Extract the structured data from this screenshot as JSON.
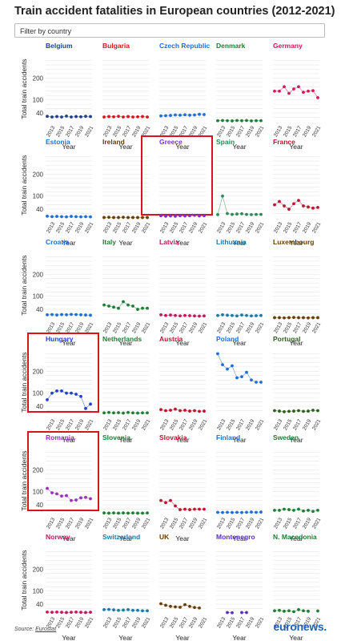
{
  "header": {
    "title": "Train accident fatalities in European countries (2012-2021)",
    "filter_placeholder": "Filter by country"
  },
  "footer": {
    "source_prefix": "Source:",
    "source_link": "Eurostat",
    "brand": "euronews."
  },
  "chart_data": {
    "type": "line",
    "layout": "small-multiples",
    "ylabel": "Total train accidents",
    "xlabel": "Year",
    "y_ticks": [
      40,
      100,
      200
    ],
    "x_ticks": [
      "2013",
      "2015",
      "2017",
      "2019",
      "2021"
    ],
    "x": [
      2012,
      2013,
      2014,
      2015,
      2016,
      2017,
      2018,
      2019,
      2020,
      2021
    ],
    "highlighted": [
      "Greece",
      "Hungary",
      "Romania"
    ],
    "panels": [
      {
        "name": "Belgium",
        "color": "#1f3f8f",
        "values": [
          25,
          22,
          24,
          22,
          26,
          22,
          24,
          23,
          25,
          24
        ]
      },
      {
        "name": "Bulgaria",
        "color": "#d6181e",
        "values": [
          22,
          24,
          23,
          25,
          22,
          24,
          22,
          23,
          24,
          22
        ]
      },
      {
        "name": "Czech Republic",
        "color": "#1f6fd6",
        "values": [
          27,
          28,
          29,
          31,
          30,
          32,
          30,
          31,
          34,
          33
        ]
      },
      {
        "name": "Denmark",
        "color": "#1e7e34",
        "values": [
          5,
          6,
          5,
          4,
          6,
          5,
          6,
          4,
          5,
          5
        ]
      },
      {
        "name": "Germany",
        "color": "#d6185a",
        "values": [
          140,
          140,
          160,
          130,
          150,
          160,
          135,
          140,
          142,
          110
        ]
      },
      {
        "name": "Estonia",
        "color": "#1f6fd6",
        "values": [
          8,
          6,
          7,
          6,
          5,
          7,
          6,
          5,
          6,
          5
        ]
      },
      {
        "name": "Ireland",
        "color": "#6b3d00",
        "values": [
          2,
          3,
          2,
          2,
          3,
          2,
          2,
          2,
          2,
          2
        ]
      },
      {
        "name": "Greece",
        "color": "#7d2fbf",
        "values": [
          10,
          8,
          9,
          8,
          10,
          9,
          10,
          12,
          9,
          10
        ]
      },
      {
        "name": "Spain",
        "color": "#2e8b57",
        "values": [
          15,
          100,
          20,
          16,
          18,
          19,
          16,
          15,
          16,
          16
        ]
      },
      {
        "name": "France",
        "color": "#c0152f",
        "values": [
          60,
          75,
          55,
          40,
          65,
          80,
          55,
          50,
          45,
          48
        ]
      },
      {
        "name": "Croatia",
        "color": "#1f6fd6",
        "values": [
          15,
          16,
          14,
          16,
          15,
          17,
          16,
          15,
          14,
          13
        ]
      },
      {
        "name": "Italy",
        "color": "#1e7e34",
        "values": [
          60,
          55,
          50,
          45,
          75,
          60,
          55,
          40,
          45,
          45
        ]
      },
      {
        "name": "Latvia",
        "color": "#c2185b",
        "values": [
          15,
          12,
          14,
          12,
          10,
          12,
          11,
          10,
          9,
          10
        ]
      },
      {
        "name": "Lithuania",
        "color": "#1a7aa8",
        "values": [
          12,
          15,
          13,
          12,
          10,
          14,
          12,
          10,
          11,
          12
        ]
      },
      {
        "name": "Luxembourg",
        "color": "#6b3d00",
        "values": [
          2,
          2,
          1,
          2,
          3,
          2,
          2,
          1,
          2,
          2
        ]
      },
      {
        "name": "Hungary",
        "color": "#1f3fd6",
        "values": [
          70,
          100,
          110,
          110,
          100,
          100,
          95,
          85,
          30,
          50
        ]
      },
      {
        "name": "Netherlands",
        "color": "#1e7e34",
        "values": [
          10,
          12,
          10,
          11,
          9,
          12,
          10,
          9,
          10,
          10
        ]
      },
      {
        "name": "Austria",
        "color": "#c0152f",
        "values": [
          25,
          20,
          22,
          27,
          20,
          22,
          18,
          20,
          17,
          18
        ]
      },
      {
        "name": "Poland",
        "color": "#1f6fd6",
        "values": [
          280,
          230,
          210,
          225,
          170,
          175,
          195,
          160,
          150,
          150
        ]
      },
      {
        "name": "Portugal",
        "color": "#2e5e1e",
        "values": [
          20,
          18,
          15,
          17,
          18,
          20,
          17,
          18,
          22,
          20
        ]
      },
      {
        "name": "Romania",
        "color": "#9c2fbf",
        "values": [
          115,
          95,
          90,
          80,
          82,
          60,
          62,
          72,
          74,
          68
        ]
      },
      {
        "name": "Slovenia",
        "color": "#1e7e34",
        "values": [
          3,
          2,
          3,
          2,
          3,
          2,
          3,
          2,
          2,
          3
        ]
      },
      {
        "name": "Slovakia",
        "color": "#c0152f",
        "values": [
          60,
          50,
          60,
          35,
          18,
          20,
          18,
          20,
          20,
          20
        ]
      },
      {
        "name": "Finland",
        "color": "#1f6fd6",
        "values": [
          6,
          5,
          6,
          5,
          6,
          5,
          6,
          7,
          6,
          7
        ]
      },
      {
        "name": "Sweden",
        "color": "#1e7e34",
        "values": [
          15,
          15,
          20,
          18,
          15,
          20,
          12,
          15,
          10,
          15
        ]
      },
      {
        "name": "Norway",
        "color": "#c2185b",
        "values": [
          4,
          3,
          4,
          3,
          2,
          3,
          4,
          3,
          2,
          3
        ]
      },
      {
        "name": "Switzerland",
        "color": "#1a7aa8",
        "values": [
          15,
          16,
          14,
          12,
          13,
          15,
          12,
          12,
          10,
          10
        ]
      },
      {
        "name": "UK",
        "color": "#6b3d00",
        "values": [
          42,
          35,
          30,
          28,
          26,
          38,
          30,
          25,
          23,
          null
        ]
      },
      {
        "name": "Montenegro",
        "color": "#5b2fbf",
        "values": [
          null,
          null,
          2,
          1,
          null,
          2,
          2,
          null,
          null,
          null
        ]
      },
      {
        "name": "N. Macedonia",
        "color": "#1e7e34",
        "values": [
          10,
          12,
          8,
          10,
          6,
          15,
          10,
          8,
          null,
          9
        ]
      }
    ]
  }
}
